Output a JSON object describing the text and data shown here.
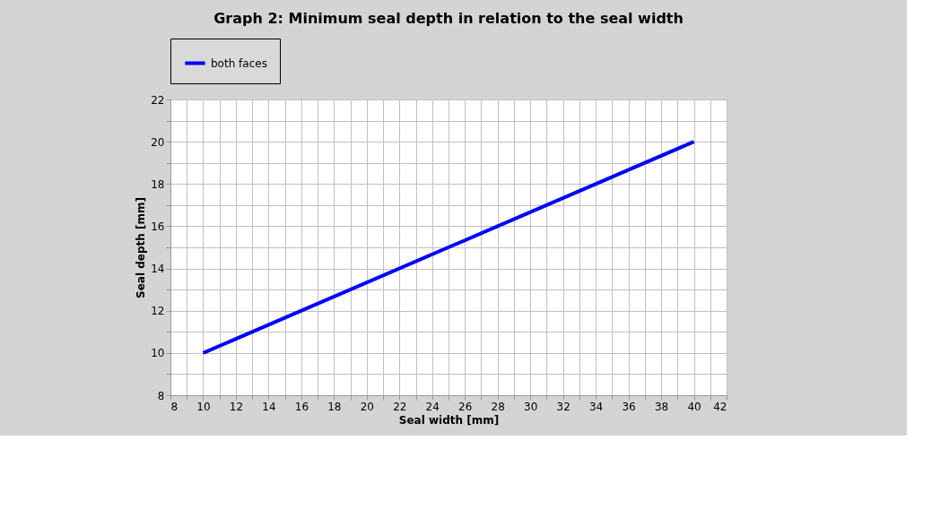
{
  "chart_data": {
    "type": "line",
    "title": "Graph 2: Minimum seal depth in relation to the seal width",
    "xlabel": "Seal width [mm]",
    "ylabel": "Seal depth [mm]",
    "x": [
      10,
      40
    ],
    "series": [
      {
        "name": "both faces",
        "color": "#0000ff",
        "values": [
          10,
          20
        ]
      }
    ],
    "xlim": [
      8,
      42
    ],
    "xticks": [
      8,
      {
        "value": 9,
        "label": null
      },
      10,
      {
        "value": 11,
        "label": null
      },
      12,
      {
        "value": 13,
        "label": null
      },
      14,
      {
        "value": 15,
        "label": null
      },
      16,
      {
        "value": 17,
        "label": null
      },
      18,
      {
        "value": 19,
        "label": null
      },
      20,
      {
        "value": 21,
        "label": null
      },
      22,
      {
        "value": 23,
        "label": null
      },
      24,
      {
        "value": 25,
        "label": null
      },
      26,
      {
        "value": 27,
        "label": null
      },
      28,
      {
        "value": 29,
        "label": null
      },
      30,
      {
        "value": 31,
        "label": null
      },
      32,
      {
        "value": 33,
        "label": null
      },
      34,
      {
        "value": 35,
        "label": null
      },
      36,
      {
        "value": 37,
        "label": null
      },
      38,
      {
        "value": 39,
        "label": null
      },
      40,
      {
        "value": 41,
        "label": null
      },
      42
    ],
    "ylim": [
      8,
      22
    ],
    "yticks": [
      8,
      {
        "value": 9,
        "label": null
      },
      10,
      {
        "value": 11,
        "label": null
      },
      12,
      {
        "value": 13,
        "label": null
      },
      14,
      {
        "value": 15,
        "label": null
      },
      16,
      {
        "value": 17,
        "label": null
      },
      18,
      {
        "value": 19,
        "label": null
      },
      20,
      {
        "value": 21,
        "label": null
      },
      22
    ],
    "grid": true,
    "legend": "top",
    "marker": "none",
    "line_style": "solid"
  }
}
